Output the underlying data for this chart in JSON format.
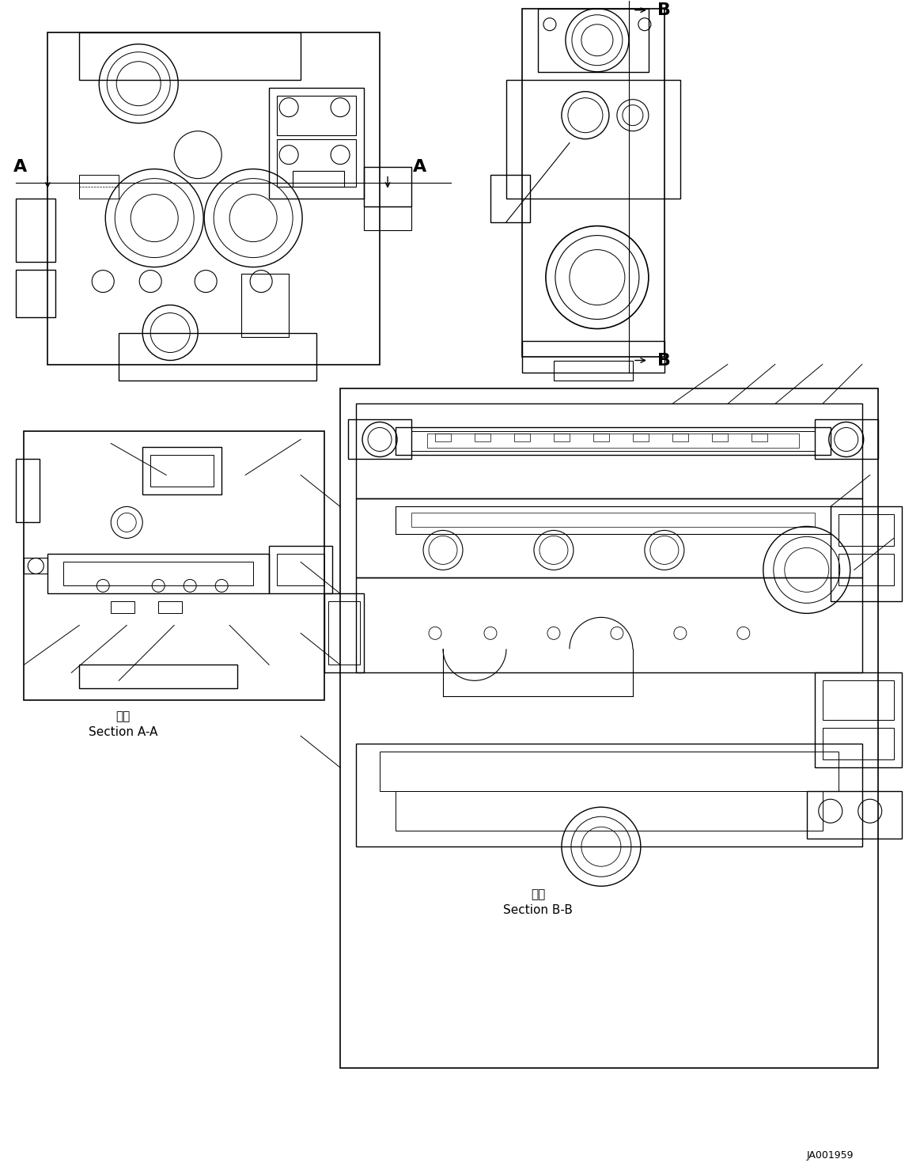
{
  "bg_color": "#ffffff",
  "line_color": "#000000",
  "line_width": 0.8,
  "fig_width": 11.63,
  "fig_height": 14.84,
  "dpi": 100,
  "label_A_left": "A",
  "label_A_right": "A",
  "label_B_top": "B",
  "label_B_bottom": "B",
  "section_aa_kanji": "断面",
  "section_aa_text": "Section A-A",
  "section_bb_kanji": "断面",
  "section_bb_text": "Section B-B",
  "part_number": "JA001959",
  "font_size_label": 14,
  "font_size_section": 11,
  "font_size_partno": 9
}
